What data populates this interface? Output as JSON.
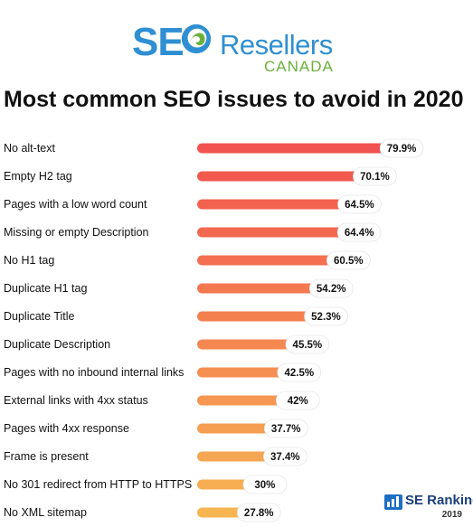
{
  "logo": {
    "part1": "SE",
    "part2": "Resellers",
    "part3": "CANADA"
  },
  "title": "Most common SEO issues to avoid in 2020",
  "brand": {
    "name": "SE Ranking",
    "year": "2019"
  },
  "colors": {
    "top": "#f2524f",
    "bottom": "#f7b552",
    "label_bg": "#ffffff"
  },
  "chart_data": {
    "type": "bar",
    "orientation": "horizontal",
    "title": "Most common SEO issues to avoid in 2020",
    "categories": [
      "No alt-text",
      "Empty H2 tag",
      "Pages with a low word count",
      "Missing or empty Description",
      "No H1 tag",
      "Duplicate H1 tag",
      "Duplicate Title",
      "Duplicate Description",
      "Pages with no inbound internal links",
      "External links with 4xx status",
      "Pages with 4xx response",
      "Frame is present",
      "No 301 redirect from HTTP to HTTPS",
      "No XML sitemap"
    ],
    "values": [
      79.9,
      70.1,
      64.5,
      64.4,
      60.5,
      54.2,
      52.3,
      45.5,
      42.5,
      42,
      37.7,
      37.4,
      30,
      27.8
    ],
    "value_labels": [
      "79.9%",
      "70.1%",
      "64.5%",
      "64.4%",
      "60.5%",
      "54.2%",
      "52.3%",
      "45.5%",
      "42.5%",
      "42%",
      "37.7%",
      "37.4%",
      "30%",
      "27.8%"
    ],
    "xlim": [
      0,
      100
    ],
    "grid": false,
    "legend": "none"
  }
}
